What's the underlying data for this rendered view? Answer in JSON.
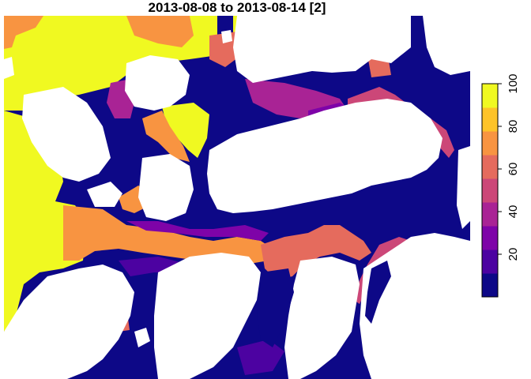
{
  "title": "2013-08-08 to 2013-08-14 [2]",
  "legend": {
    "ticks": [
      20,
      40,
      60,
      80,
      100
    ],
    "min": 0,
    "max": 100,
    "colors": [
      "#0D0887",
      "#4C02A1",
      "#7E03A8",
      "#A92395",
      "#CC4778",
      "#E56B5D",
      "#F89441",
      "#FDC328",
      "#F0F921"
    ]
  },
  "palette": {
    "land": "#ffffff",
    "low": "#0D0887",
    "mid_purple": "#7E03A8",
    "mid_magenta": "#A92395",
    "mid_red": "#CC4778",
    "mid_orange": "#E56B5D",
    "orange": "#F89441",
    "gold": "#FDC328",
    "yellow": "#F0F921"
  }
}
